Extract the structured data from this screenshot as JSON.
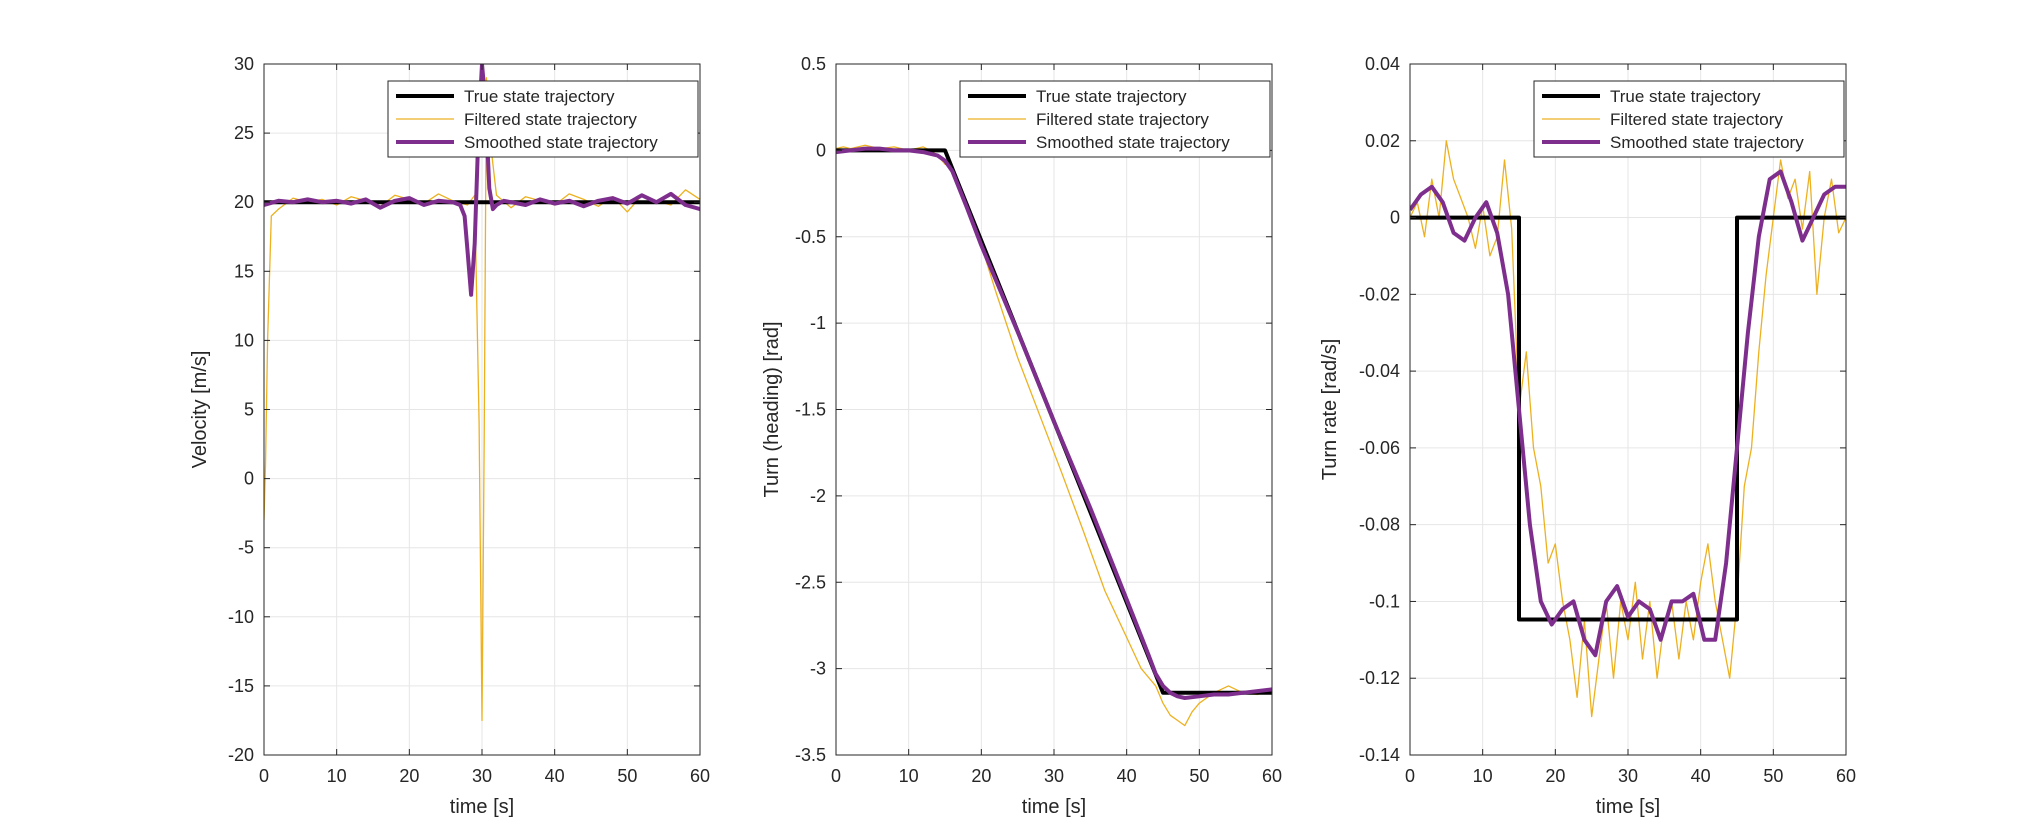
{
  "chart_data": [
    {
      "type": "line",
      "xlabel": "time [s]",
      "ylabel": "Velocity [m/s]",
      "xlim": [
        0,
        60
      ],
      "ylim": [
        -20,
        30
      ],
      "xticks": [
        "0",
        "10",
        "20",
        "30",
        "40",
        "50",
        "60"
      ],
      "yticks": [
        "-20",
        "-15",
        "-10",
        "-5",
        "0",
        "5",
        "10",
        "15",
        "20",
        "25",
        "30"
      ],
      "grid": true,
      "legend_position": "top-right",
      "series": [
        {
          "name": "True state trajectory",
          "color": "#000000",
          "x": [
            0,
            60
          ],
          "y": [
            20,
            20
          ]
        },
        {
          "name": "Filtered state trajectory",
          "color": "#EDB120",
          "x": [
            0,
            0.2,
            0.5,
            1,
            2,
            4,
            6,
            8,
            10,
            12,
            14,
            16,
            18,
            20,
            22,
            24,
            26,
            28,
            29,
            29.6,
            30,
            30.3,
            30.6,
            31,
            32,
            34,
            36,
            38,
            40,
            42,
            44,
            46,
            48,
            50,
            52,
            54,
            56,
            58,
            60
          ],
          "y": [
            -3,
            1,
            10,
            19,
            19.5,
            20.3,
            20,
            20.2,
            19.8,
            20.4,
            20.1,
            19.7,
            20.5,
            20.2,
            19.9,
            20.6,
            20.1,
            19.8,
            20.5,
            4,
            -17.5,
            3,
            29,
            25,
            20.5,
            19.6,
            20.4,
            20.1,
            19.8,
            20.6,
            20.2,
            19.7,
            20.4,
            19.3,
            20.5,
            20.1,
            19.8,
            20.9,
            20.2
          ]
        },
        {
          "name": "Smoothed state trajectory",
          "color": "#7E2F8E",
          "x": [
            0,
            2,
            4,
            6,
            8,
            10,
            12,
            14,
            16,
            18,
            20,
            22,
            24,
            26,
            27,
            27.6,
            28,
            28.5,
            29,
            29.5,
            30,
            30.5,
            31,
            31.5,
            32,
            33,
            34,
            36,
            38,
            40,
            42,
            44,
            46,
            48,
            50,
            52,
            54,
            56,
            58,
            60
          ],
          "y": [
            19.8,
            20.1,
            20,
            20.2,
            20,
            20.1,
            19.9,
            20.2,
            19.6,
            20.1,
            20.3,
            19.8,
            20.1,
            20,
            19.8,
            19,
            16.5,
            13.3,
            17,
            25,
            30,
            27,
            21,
            19.5,
            19.8,
            20.1,
            20,
            19.8,
            20.2,
            19.9,
            20.1,
            19.7,
            20.1,
            20.3,
            19.9,
            20.5,
            20,
            20.6,
            19.8,
            19.5
          ]
        }
      ]
    },
    {
      "type": "line",
      "xlabel": "time [s]",
      "ylabel": "Turn (heading) [rad]",
      "xlim": [
        0,
        60
      ],
      "ylim": [
        -3.5,
        0.5
      ],
      "xticks": [
        "0",
        "10",
        "20",
        "30",
        "40",
        "50",
        "60"
      ],
      "yticks": [
        "-3.5",
        "-3",
        "-2.5",
        "-2",
        "-1.5",
        "-1",
        "-0.5",
        "0",
        "0.5"
      ],
      "grid": true,
      "legend_position": "top-right",
      "series": [
        {
          "name": "True state trajectory",
          "color": "#000000",
          "x": [
            0,
            15,
            45,
            60
          ],
          "y": [
            0,
            0,
            -3.14,
            -3.14
          ]
        },
        {
          "name": "Filtered state trajectory",
          "color": "#EDB120",
          "x": [
            0,
            1,
            2,
            4,
            6,
            8,
            10,
            12,
            13,
            14,
            15,
            16,
            17,
            18,
            20,
            22,
            25,
            28,
            31,
            34,
            37,
            40,
            42,
            44,
            45,
            46,
            47,
            48,
            49,
            50,
            51,
            52,
            54,
            56,
            58,
            60
          ],
          "y": [
            0.01,
            0.02,
            0.01,
            0.03,
            0.01,
            0.02,
            0.0,
            0.02,
            0.0,
            -0.03,
            -0.08,
            -0.1,
            -0.22,
            -0.35,
            -0.55,
            -0.82,
            -1.2,
            -1.53,
            -1.86,
            -2.2,
            -2.55,
            -2.82,
            -3.0,
            -3.1,
            -3.2,
            -3.27,
            -3.3,
            -3.33,
            -3.25,
            -3.2,
            -3.17,
            -3.14,
            -3.1,
            -3.14,
            -3.15,
            -3.12
          ]
        },
        {
          "name": "Smoothed state trajectory",
          "color": "#7E2F8E",
          "x": [
            0,
            2,
            4,
            6,
            8,
            10,
            12,
            14,
            15,
            16,
            18,
            20,
            25,
            30,
            35,
            40,
            43,
            44,
            45,
            46,
            47,
            48,
            50,
            52,
            54,
            56,
            58,
            60
          ],
          "y": [
            -0.01,
            0.0,
            0.01,
            0.01,
            0.0,
            0.0,
            -0.01,
            -0.03,
            -0.06,
            -0.12,
            -0.33,
            -0.55,
            -1.05,
            -1.57,
            -2.07,
            -2.6,
            -2.92,
            -3.03,
            -3.1,
            -3.14,
            -3.16,
            -3.17,
            -3.16,
            -3.15,
            -3.15,
            -3.14,
            -3.13,
            -3.12
          ]
        }
      ]
    },
    {
      "type": "line",
      "xlabel": "time [s]",
      "ylabel": "Turn rate [rad/s]",
      "xlim": [
        0,
        60
      ],
      "ylim": [
        -0.14,
        0.04
      ],
      "xticks": [
        "0",
        "10",
        "20",
        "30",
        "40",
        "50",
        "60"
      ],
      "yticks": [
        "-0.14",
        "-0.12",
        "-0.1",
        "-0.08",
        "-0.06",
        "-0.04",
        "-0.02",
        "0",
        "0.02",
        "0.04"
      ],
      "grid": true,
      "legend_position": "top-right",
      "series": [
        {
          "name": "True state trajectory",
          "color": "#000000",
          "x": [
            0,
            15,
            15,
            45,
            45,
            60
          ],
          "y": [
            0,
            0,
            -0.1047,
            -0.1047,
            0,
            0
          ]
        },
        {
          "name": "Filtered state trajectory",
          "color": "#EDB120",
          "x": [
            0,
            1,
            2,
            3,
            4,
            5,
            6,
            7,
            8,
            9,
            10,
            11,
            12,
            13,
            14,
            15,
            16,
            17,
            18,
            19,
            20,
            21,
            22,
            23,
            24,
            25,
            26,
            27,
            28,
            29,
            30,
            31,
            32,
            33,
            34,
            35,
            36,
            37,
            38,
            39,
            40,
            41,
            42,
            43,
            44,
            45,
            46,
            47,
            48,
            49,
            50,
            51,
            52,
            53,
            54,
            55,
            56,
            57,
            58,
            59,
            60
          ],
          "y": [
            0.0,
            0.004,
            -0.005,
            0.01,
            0.0,
            0.02,
            0.01,
            0.005,
            0.0,
            -0.008,
            0.003,
            -0.01,
            -0.005,
            0.015,
            -0.003,
            -0.05,
            -0.035,
            -0.06,
            -0.07,
            -0.09,
            -0.085,
            -0.1,
            -0.11,
            -0.125,
            -0.105,
            -0.13,
            -0.115,
            -0.1,
            -0.12,
            -0.1,
            -0.11,
            -0.095,
            -0.115,
            -0.1,
            -0.12,
            -0.105,
            -0.1,
            -0.115,
            -0.1,
            -0.11,
            -0.095,
            -0.085,
            -0.1,
            -0.11,
            -0.12,
            -0.1,
            -0.07,
            -0.06,
            -0.035,
            -0.015,
            0.0,
            0.015,
            0.005,
            0.01,
            -0.003,
            0.012,
            -0.02,
            0.0,
            0.01,
            -0.004,
            0.0
          ]
        },
        {
          "name": "Smoothed state trajectory",
          "color": "#7E2F8E",
          "x": [
            0,
            1.5,
            3,
            4.5,
            6,
            7.5,
            9,
            10.5,
            12,
            13.5,
            15,
            16.5,
            18,
            19.5,
            21,
            22.5,
            24,
            25.5,
            27,
            28.5,
            30,
            31.5,
            33,
            34.5,
            36,
            37.5,
            39,
            40.5,
            42,
            43.5,
            45,
            46.5,
            48,
            49.5,
            51,
            52.5,
            54,
            55.5,
            57,
            58.5,
            60
          ],
          "y": [
            0.002,
            0.006,
            0.008,
            0.004,
            -0.004,
            -0.006,
            0.0,
            0.004,
            -0.004,
            -0.02,
            -0.05,
            -0.08,
            -0.1,
            -0.106,
            -0.102,
            -0.1,
            -0.11,
            -0.114,
            -0.1,
            -0.096,
            -0.104,
            -0.1,
            -0.102,
            -0.11,
            -0.1,
            -0.1,
            -0.098,
            -0.11,
            -0.11,
            -0.09,
            -0.06,
            -0.03,
            -0.005,
            0.01,
            0.012,
            0.004,
            -0.006,
            0.0,
            0.006,
            0.008,
            0.008
          ]
        }
      ]
    }
  ]
}
